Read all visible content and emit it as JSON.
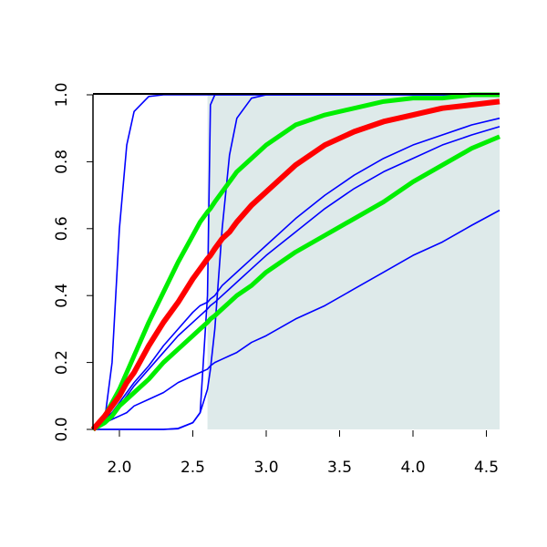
{
  "chart_data": {
    "type": "line",
    "x": [
      1.82,
      1.9,
      1.95,
      2.0,
      2.05,
      2.1,
      2.2,
      2.3,
      2.4,
      2.5,
      2.55,
      2.6,
      2.62,
      2.65,
      2.7,
      2.75,
      2.8,
      2.9,
      3.0,
      3.2,
      3.4,
      3.6,
      3.8,
      4.0,
      4.2,
      4.4,
      4.59
    ],
    "series": [
      {
        "color": "#0000ff",
        "width": 1.6,
        "values": [
          0,
          0.02,
          0.03,
          0.04,
          0.05,
          0.07,
          0.09,
          0.11,
          0.14,
          0.16,
          0.17,
          0.18,
          0.19,
          0.2,
          0.21,
          0.22,
          0.23,
          0.26,
          0.28,
          0.33,
          0.37,
          0.42,
          0.47,
          0.52,
          0.56,
          0.61,
          0.655
        ]
      },
      {
        "color": "#0000ff",
        "width": 1.6,
        "values": [
          0,
          0.03,
          0.05,
          0.07,
          0.1,
          0.13,
          0.18,
          0.23,
          0.28,
          0.32,
          0.34,
          0.36,
          0.37,
          0.38,
          0.4,
          0.42,
          0.44,
          0.48,
          0.52,
          0.59,
          0.66,
          0.72,
          0.77,
          0.81,
          0.85,
          0.88,
          0.905
        ]
      },
      {
        "color": "#0000ff",
        "width": 1.6,
        "values": [
          0,
          0.03,
          0.05,
          0.08,
          0.11,
          0.14,
          0.19,
          0.25,
          0.3,
          0.35,
          0.37,
          0.38,
          0.39,
          0.4,
          0.43,
          0.45,
          0.47,
          0.51,
          0.55,
          0.63,
          0.7,
          0.76,
          0.81,
          0.85,
          0.88,
          0.91,
          0.93
        ]
      },
      {
        "color": "#0000ff",
        "width": 1.6,
        "values": [
          0,
          0.03,
          0.2,
          0.6,
          0.85,
          0.95,
          0.995,
          1,
          1,
          1,
          1,
          1,
          1,
          1,
          1,
          1,
          1,
          1,
          1,
          1,
          1,
          1,
          1,
          1,
          1,
          1,
          1
        ]
      },
      {
        "color": "#0000ff",
        "width": 1.6,
        "values": [
          0,
          0,
          0,
          0,
          0,
          0,
          0,
          0,
          0.003,
          0.02,
          0.05,
          0.4,
          0.97,
          1,
          1,
          1,
          1,
          1,
          1,
          1,
          1,
          1,
          1,
          1,
          1,
          1,
          1
        ]
      },
      {
        "color": "#0000ff",
        "width": 1.6,
        "values": [
          0,
          0,
          0,
          0,
          0,
          0,
          0,
          0,
          0.002,
          0.02,
          0.05,
          0.12,
          0.18,
          0.3,
          0.6,
          0.82,
          0.93,
          0.99,
          1,
          1,
          1,
          1,
          1,
          1,
          1,
          1,
          1
        ]
      },
      {
        "color": "#00ee00",
        "width": 5,
        "values": [
          0,
          0.02,
          0.04,
          0.07,
          0.09,
          0.11,
          0.15,
          0.2,
          0.24,
          0.28,
          0.3,
          0.32,
          0.33,
          0.34,
          0.36,
          0.38,
          0.4,
          0.43,
          0.47,
          0.53,
          0.58,
          0.63,
          0.68,
          0.74,
          0.79,
          0.84,
          0.875
        ]
      },
      {
        "color": "#00ee00",
        "width": 5,
        "values": [
          0,
          0.04,
          0.08,
          0.12,
          0.17,
          0.22,
          0.32,
          0.41,
          0.5,
          0.58,
          0.62,
          0.65,
          0.66,
          0.68,
          0.71,
          0.74,
          0.77,
          0.81,
          0.85,
          0.91,
          0.94,
          0.96,
          0.98,
          0.99,
          0.99,
          1,
          1
        ]
      },
      {
        "color": "#ff0000",
        "width": 6,
        "values": [
          0,
          0.04,
          0.07,
          0.1,
          0.14,
          0.17,
          0.25,
          0.32,
          0.38,
          0.45,
          0.48,
          0.51,
          0.52,
          0.54,
          0.57,
          0.59,
          0.62,
          0.67,
          0.71,
          0.79,
          0.85,
          0.89,
          0.92,
          0.94,
          0.96,
          0.97,
          0.98
        ]
      }
    ],
    "shaded_region": {
      "x": [
        2.6,
        4.59
      ],
      "color": "#deeaea"
    },
    "xlim": [
      1.82,
      4.59
    ],
    "ylim": [
      0,
      1
    ],
    "xticks": [
      {
        "value": 2,
        "label": "2.0"
      },
      {
        "value": 2.5,
        "label": "2.5"
      },
      {
        "value": 3,
        "label": "3.0"
      },
      {
        "value": 3.5,
        "label": "3.5"
      },
      {
        "value": 4,
        "label": "4.0"
      },
      {
        "value": 4.5,
        "label": "4.5"
      }
    ],
    "yticks": [
      {
        "value": 0,
        "label": "0.0"
      },
      {
        "value": 0.2,
        "label": "0.2"
      },
      {
        "value": 0.4,
        "label": "0.4"
      },
      {
        "value": 0.6,
        "label": "0.6"
      },
      {
        "value": 0.8,
        "label": "0.8"
      },
      {
        "value": 1,
        "label": "1.0"
      }
    ]
  }
}
